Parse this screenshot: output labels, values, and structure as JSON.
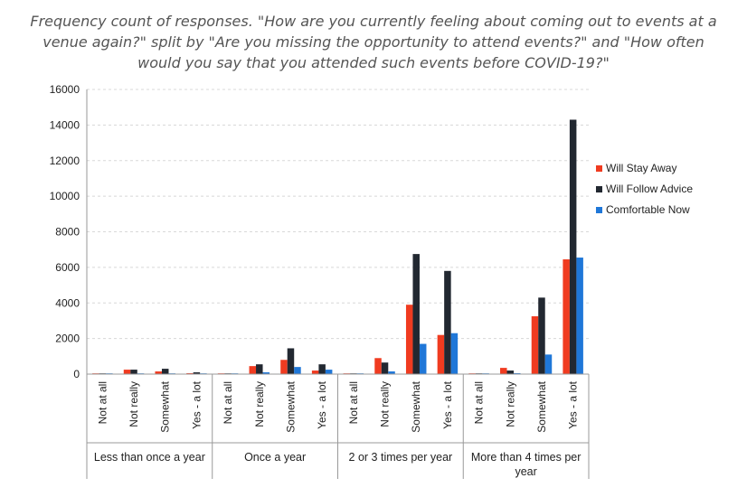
{
  "chart_data": {
    "type": "bar",
    "title": "Frequency count of responses. \"How are you currently feeling about coming out to events at a venue again?\" split by \"Are you missing the opportunity to attend events?\" and \"How often would you say that you attended such events before COVID-19?\"",
    "xlabel": "",
    "ylabel": "",
    "ylim": [
      0,
      16000
    ],
    "yticks": [
      0,
      2000,
      4000,
      6000,
      8000,
      10000,
      12000,
      14000,
      16000
    ],
    "grid": true,
    "legend_position": "right",
    "groups": [
      {
        "label": "Less than once a year",
        "lines": [
          "Less than once a year"
        ],
        "categories": [
          "Not at all",
          "Not really",
          "Somewhat",
          "Yes - a lot"
        ]
      },
      {
        "label": "Once a year",
        "lines": [
          "Once a year"
        ],
        "categories": [
          "Not at all",
          "Not really",
          "Somewhat",
          "Yes - a lot"
        ]
      },
      {
        "label": "2 or 3 times per year",
        "lines": [
          "2 or 3 times per year"
        ],
        "categories": [
          "Not at all",
          "Not really",
          "Somewhat",
          "Yes - a lot"
        ]
      },
      {
        "label": "More than 4 times per year",
        "lines": [
          "More than 4 times per",
          "year"
        ],
        "categories": [
          "Not at all",
          "Not really",
          "Somewhat",
          "Yes - a lot"
        ]
      }
    ],
    "series": [
      {
        "name": "Will Stay Away",
        "color": "#f03b20",
        "values": [
          20,
          250,
          150,
          50,
          20,
          450,
          800,
          200,
          20,
          900,
          3900,
          2200,
          20,
          350,
          3250,
          6450
        ]
      },
      {
        "name": "Will Follow Advice",
        "color": "#222831",
        "values": [
          30,
          250,
          300,
          100,
          30,
          550,
          1450,
          550,
          30,
          650,
          6750,
          5800,
          30,
          200,
          4300,
          14300
        ]
      },
      {
        "name": "Comfortable Now",
        "color": "#1f77d8",
        "values": [
          10,
          30,
          30,
          20,
          10,
          100,
          400,
          250,
          10,
          150,
          1700,
          2300,
          10,
          50,
          1100,
          6550
        ]
      }
    ]
  }
}
